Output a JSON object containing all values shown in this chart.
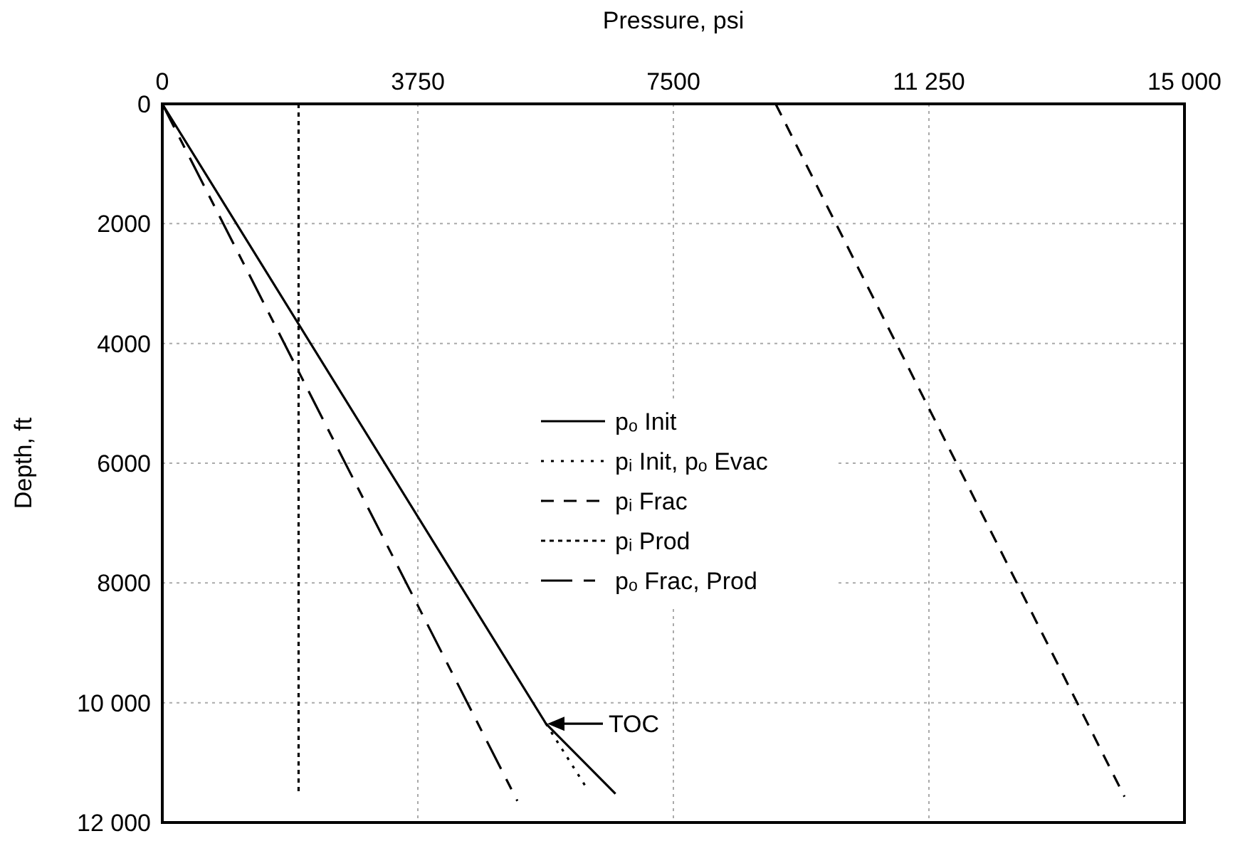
{
  "chart_data": {
    "type": "line",
    "xlabel": "Pressure, psi",
    "ylabel": "Depth, ft",
    "xlim": [
      0,
      15000
    ],
    "xticks": [
      0,
      3750,
      7500,
      {
        "value": 11250,
        "label": "11 250"
      },
      {
        "value": 15000,
        "label": "15 000"
      }
    ],
    "ylim": [
      12000,
      0
    ],
    "yticks": [
      0,
      2000,
      4000,
      6000,
      8000,
      {
        "value": 10000,
        "label": "10 000"
      },
      {
        "value": 12000,
        "label": "12 000"
      }
    ],
    "grid": true,
    "legend": "center",
    "series": [
      {
        "name": "pₒ Init",
        "color": "#000000",
        "line_style": "solid",
        "x": [
          0,
          5630,
          6650
        ],
        "values": [
          0,
          10350,
          11520
        ]
      },
      {
        "name": "pᵢ Init, pₒ Evac",
        "color": "#000000",
        "line_style": "dotted",
        "x": [
          5630,
          6230
        ],
        "values": [
          10350,
          11430
        ]
      },
      {
        "name": "pᵢ Frac",
        "color": "#000000",
        "line_style": "dashed",
        "x": [
          9000,
          14120
        ],
        "values": [
          0,
          11570
        ]
      },
      {
        "name": "pᵢ Prod",
        "color": "#000000",
        "line_style": "dotted",
        "x": [
          2000,
          2000
        ],
        "values": [
          0,
          11520
        ]
      },
      {
        "name": "pₒ Frac, Prod",
        "color": "#000000",
        "line_style": "dashed",
        "x": [
          0,
          5210
        ],
        "values": [
          0,
          11640
        ]
      }
    ],
    "annotations": [
      {
        "text": "TOC",
        "x": 5630,
        "y": 10350
      }
    ]
  }
}
